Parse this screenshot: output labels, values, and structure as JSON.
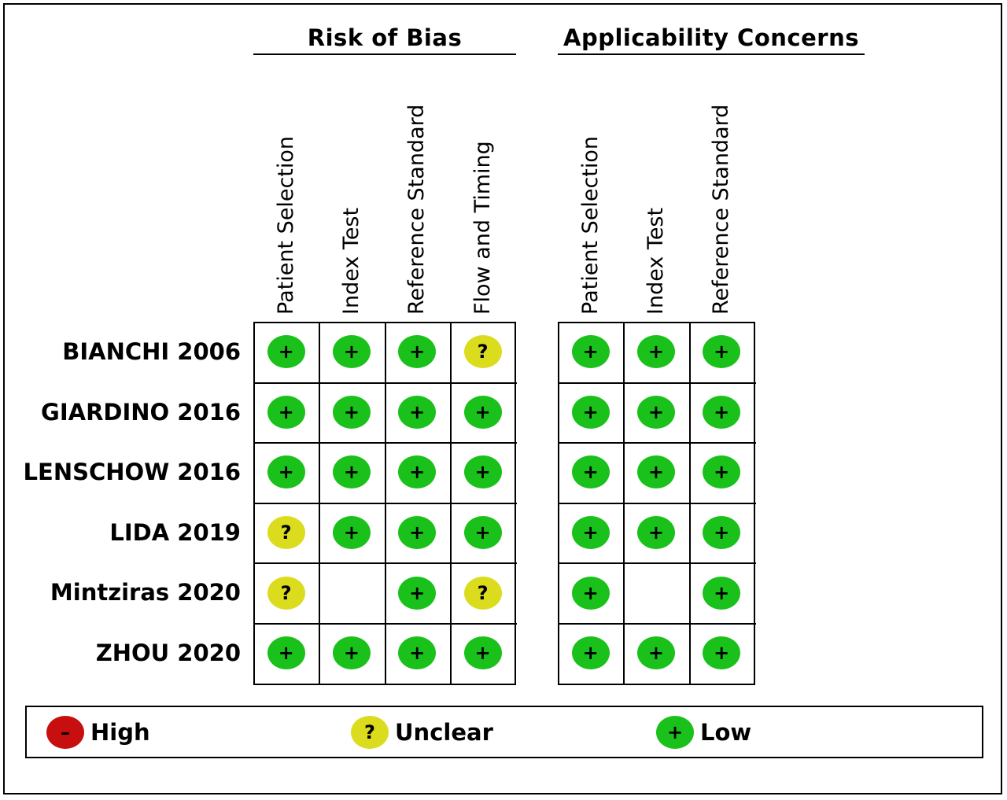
{
  "chart_data": {
    "type": "table",
    "groups": [
      {
        "title": "Risk of Bias",
        "domains": [
          "Patient Selection",
          "Index Test",
          "Reference Standard",
          "Flow and Timing"
        ]
      },
      {
        "title": "Applicability Concerns",
        "domains": [
          "Patient Selection",
          "Index Test",
          "Reference Standard"
        ]
      }
    ],
    "studies": [
      {
        "name": "BIANCHI 2006",
        "risk": [
          "low",
          "low",
          "low",
          "unclear"
        ],
        "applicability": [
          "low",
          "low",
          "low"
        ]
      },
      {
        "name": "GIARDINO 2016",
        "risk": [
          "low",
          "low",
          "low",
          "low"
        ],
        "applicability": [
          "low",
          "low",
          "low"
        ]
      },
      {
        "name": "LENSCHOW 2016",
        "risk": [
          "low",
          "low",
          "low",
          "low"
        ],
        "applicability": [
          "low",
          "low",
          "low"
        ]
      },
      {
        "name": "LIDA 2019",
        "risk": [
          "unclear",
          "low",
          "low",
          "low"
        ],
        "applicability": [
          "low",
          "low",
          "low"
        ]
      },
      {
        "name": "Mintziras 2020",
        "risk": [
          "unclear",
          "none",
          "low",
          "unclear"
        ],
        "applicability": [
          "low",
          "none",
          "low"
        ]
      },
      {
        "name": "ZHOU 2020",
        "risk": [
          "low",
          "low",
          "low",
          "low"
        ],
        "applicability": [
          "low",
          "low",
          "low"
        ]
      }
    ],
    "symbols": {
      "low": "+",
      "unclear": "?",
      "high": "–"
    },
    "legend": [
      {
        "level": "high",
        "label": "High",
        "color": "#c80f0f"
      },
      {
        "level": "unclear",
        "label": "Unclear",
        "color": "#dcdc1e"
      },
      {
        "level": "low",
        "label": "Low",
        "color": "#19c11a"
      }
    ],
    "colors": {
      "low": "#19c11a",
      "unclear": "#dcdc1e",
      "high": "#c80f0f"
    }
  }
}
